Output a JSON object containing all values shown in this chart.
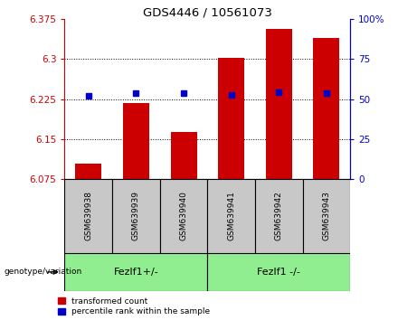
{
  "title": "GDS4446 / 10561073",
  "samples": [
    "GSM639938",
    "GSM639939",
    "GSM639940",
    "GSM639941",
    "GSM639942",
    "GSM639943"
  ],
  "red_values": [
    6.105,
    6.218,
    6.163,
    6.302,
    6.356,
    6.34
  ],
  "blue_values": [
    6.232,
    6.237,
    6.236,
    6.233,
    6.238,
    6.237
  ],
  "y_min": 6.075,
  "y_max": 6.375,
  "y_ticks": [
    6.075,
    6.15,
    6.225,
    6.3,
    6.375
  ],
  "y_right_ticks": [
    0,
    25,
    50,
    75,
    100
  ],
  "bar_color": "#cc0000",
  "blue_color": "#0000cc",
  "group1_label": "Fezlf1+/-",
  "group2_label": "Fezlf1 -/-",
  "group_color": "#90ee90",
  "xlabel_area_color": "#c8c8c8",
  "legend_red_label": "transformed count",
  "legend_blue_label": "percentile rank within the sample",
  "genotype_label": "genotype/variation"
}
